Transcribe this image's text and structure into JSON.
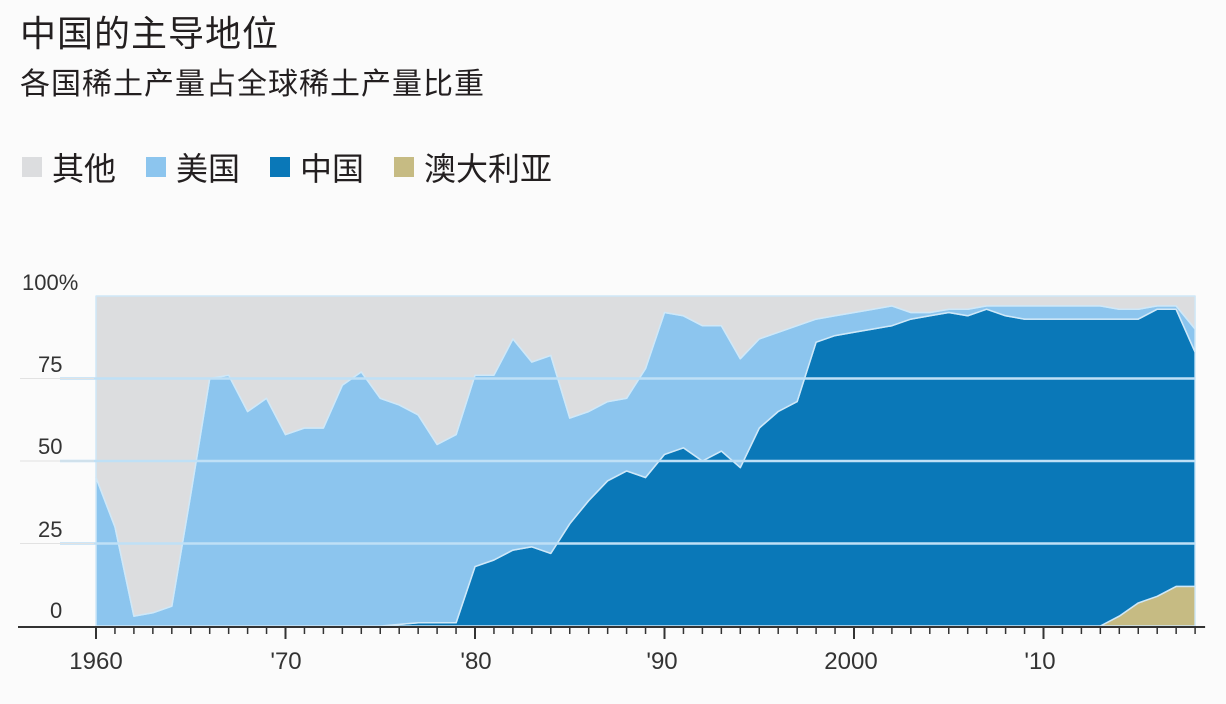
{
  "header": {
    "title": "中国的主导地位",
    "subtitle": "各国稀土产量占全球稀土产量比重"
  },
  "legend": [
    {
      "label": "其他",
      "color": "#dcdddf"
    },
    {
      "label": "美国",
      "color": "#8cc5ee"
    },
    {
      "label": "中国",
      "color": "#0a78b8"
    },
    {
      "label": "澳大利亚",
      "color": "#c6bb83"
    }
  ],
  "axes": {
    "y_ticks": [
      {
        "label": "100%",
        "value": 100
      },
      {
        "label": "75",
        "value": 75
      },
      {
        "label": "50",
        "value": 50
      },
      {
        "label": "25",
        "value": 25
      },
      {
        "label": "0",
        "value": 0
      }
    ],
    "x_ticks": [
      {
        "label": "1960",
        "year": 1960
      },
      {
        "label": "'70",
        "year": 1970
      },
      {
        "label": "'80",
        "year": 1980
      },
      {
        "label": "'90",
        "year": 1990
      },
      {
        "label": "2000",
        "year": 2000
      },
      {
        "label": "'10",
        "year": 2010
      }
    ]
  },
  "chart_data": {
    "type": "area",
    "stacked": true,
    "title": "中国的主导地位",
    "subtitle": "各国稀土产量占全球稀土产量比重",
    "xlabel": "",
    "ylabel": "",
    "ylim": [
      0,
      100
    ],
    "xlim": [
      1960,
      2018
    ],
    "grid": true,
    "legend_position": "top-left",
    "x": [
      1960,
      1961,
      1962,
      1963,
      1964,
      1965,
      1966,
      1967,
      1968,
      1969,
      1970,
      1971,
      1972,
      1973,
      1974,
      1975,
      1976,
      1977,
      1978,
      1979,
      1980,
      1981,
      1982,
      1983,
      1984,
      1985,
      1986,
      1987,
      1988,
      1989,
      1990,
      1991,
      1992,
      1993,
      1994,
      1995,
      1996,
      1997,
      1998,
      1999,
      2000,
      2001,
      2002,
      2003,
      2004,
      2005,
      2006,
      2007,
      2008,
      2009,
      2010,
      2011,
      2012,
      2013,
      2014,
      2015,
      2016,
      2017,
      2018
    ],
    "series": [
      {
        "name": "澳大利亚",
        "color": "#c6bb83",
        "values": [
          0,
          0,
          0,
          0,
          0,
          0,
          0,
          0,
          0,
          0,
          0,
          0,
          0,
          0,
          0,
          0,
          0,
          0,
          0,
          0,
          0,
          0,
          0,
          0,
          0,
          0,
          0,
          0,
          0,
          0,
          0,
          0,
          0,
          0,
          0,
          0,
          0,
          0,
          0,
          0,
          0,
          0,
          0,
          0,
          0,
          0,
          0,
          0,
          0,
          0,
          0,
          0,
          0,
          0,
          3,
          7,
          9,
          12,
          12
        ]
      },
      {
        "name": "中国",
        "color": "#0a78b8",
        "values": [
          0,
          0,
          0,
          0,
          0,
          0,
          0,
          0,
          0,
          0,
          0,
          0,
          0,
          0,
          0,
          0,
          0.5,
          1,
          1,
          1,
          18,
          20,
          23,
          24,
          22,
          31,
          38,
          44,
          47,
          45,
          52,
          54,
          50,
          53,
          48,
          60,
          65,
          68,
          86,
          88,
          89,
          90,
          91,
          93,
          94,
          95,
          94,
          96,
          94,
          93,
          93,
          93,
          93,
          93,
          90,
          86,
          87,
          84,
          71
        ]
      },
      {
        "name": "美国",
        "color": "#8cc5ee",
        "values": [
          45,
          30,
          3,
          4,
          6,
          40,
          75,
          76,
          65,
          69,
          58,
          60,
          60,
          73,
          77,
          69,
          66.5,
          63,
          54,
          57,
          58,
          56,
          64,
          56,
          60,
          32,
          27,
          24,
          22,
          33,
          43,
          40,
          41,
          38,
          33,
          27,
          24,
          23,
          7,
          6,
          6,
          6,
          6,
          2,
          1,
          1,
          2,
          1,
          3,
          4,
          4,
          4,
          4,
          4,
          3,
          3,
          1,
          1,
          7
        ]
      },
      {
        "name": "其他",
        "color": "#dcdddf",
        "values": [
          55,
          70,
          97,
          96,
          94,
          60,
          25,
          24,
          35,
          31,
          42,
          40,
          40,
          27,
          23,
          31,
          33,
          36,
          45,
          42,
          24,
          24,
          13,
          20,
          18,
          37,
          35,
          32,
          31,
          22,
          5,
          6,
          9,
          9,
          19,
          13,
          11,
          9,
          7,
          6,
          5,
          4,
          3,
          5,
          5,
          4,
          4,
          3,
          3,
          3,
          3,
          3,
          3,
          3,
          4,
          4,
          3,
          3,
          10
        ]
      }
    ]
  }
}
